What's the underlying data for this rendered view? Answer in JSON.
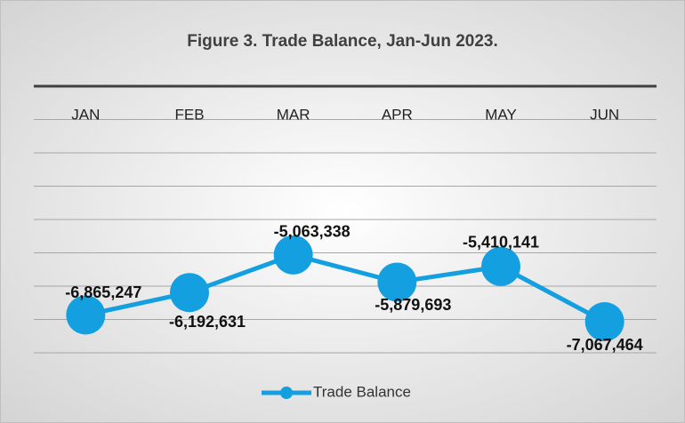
{
  "chart_data": {
    "type": "line",
    "title": "Figure 3. Trade Balance, Jan-Jun 2023.",
    "categories": [
      "JAN",
      "FEB",
      "MAR",
      "APR",
      "MAY",
      "JUN"
    ],
    "series": [
      {
        "name": "Trade Balance",
        "color": "#149fe0",
        "values": [
          -6865247,
          -6192631,
          -5063338,
          -5879693,
          -5410141,
          -7067464
        ],
        "value_labels": [
          "-6,865,247",
          "-6,192,631",
          "-5,063,338",
          "-5,879,693",
          "-5,410,141",
          "-7,067,464"
        ]
      }
    ],
    "ylim": [
      -8000000,
      0
    ],
    "yticks": [
      -8000000,
      -7000000,
      -6000000,
      -5000000,
      -4000000,
      -3000000,
      -2000000,
      -1000000,
      0
    ],
    "grid": true,
    "legend": "bottom"
  }
}
